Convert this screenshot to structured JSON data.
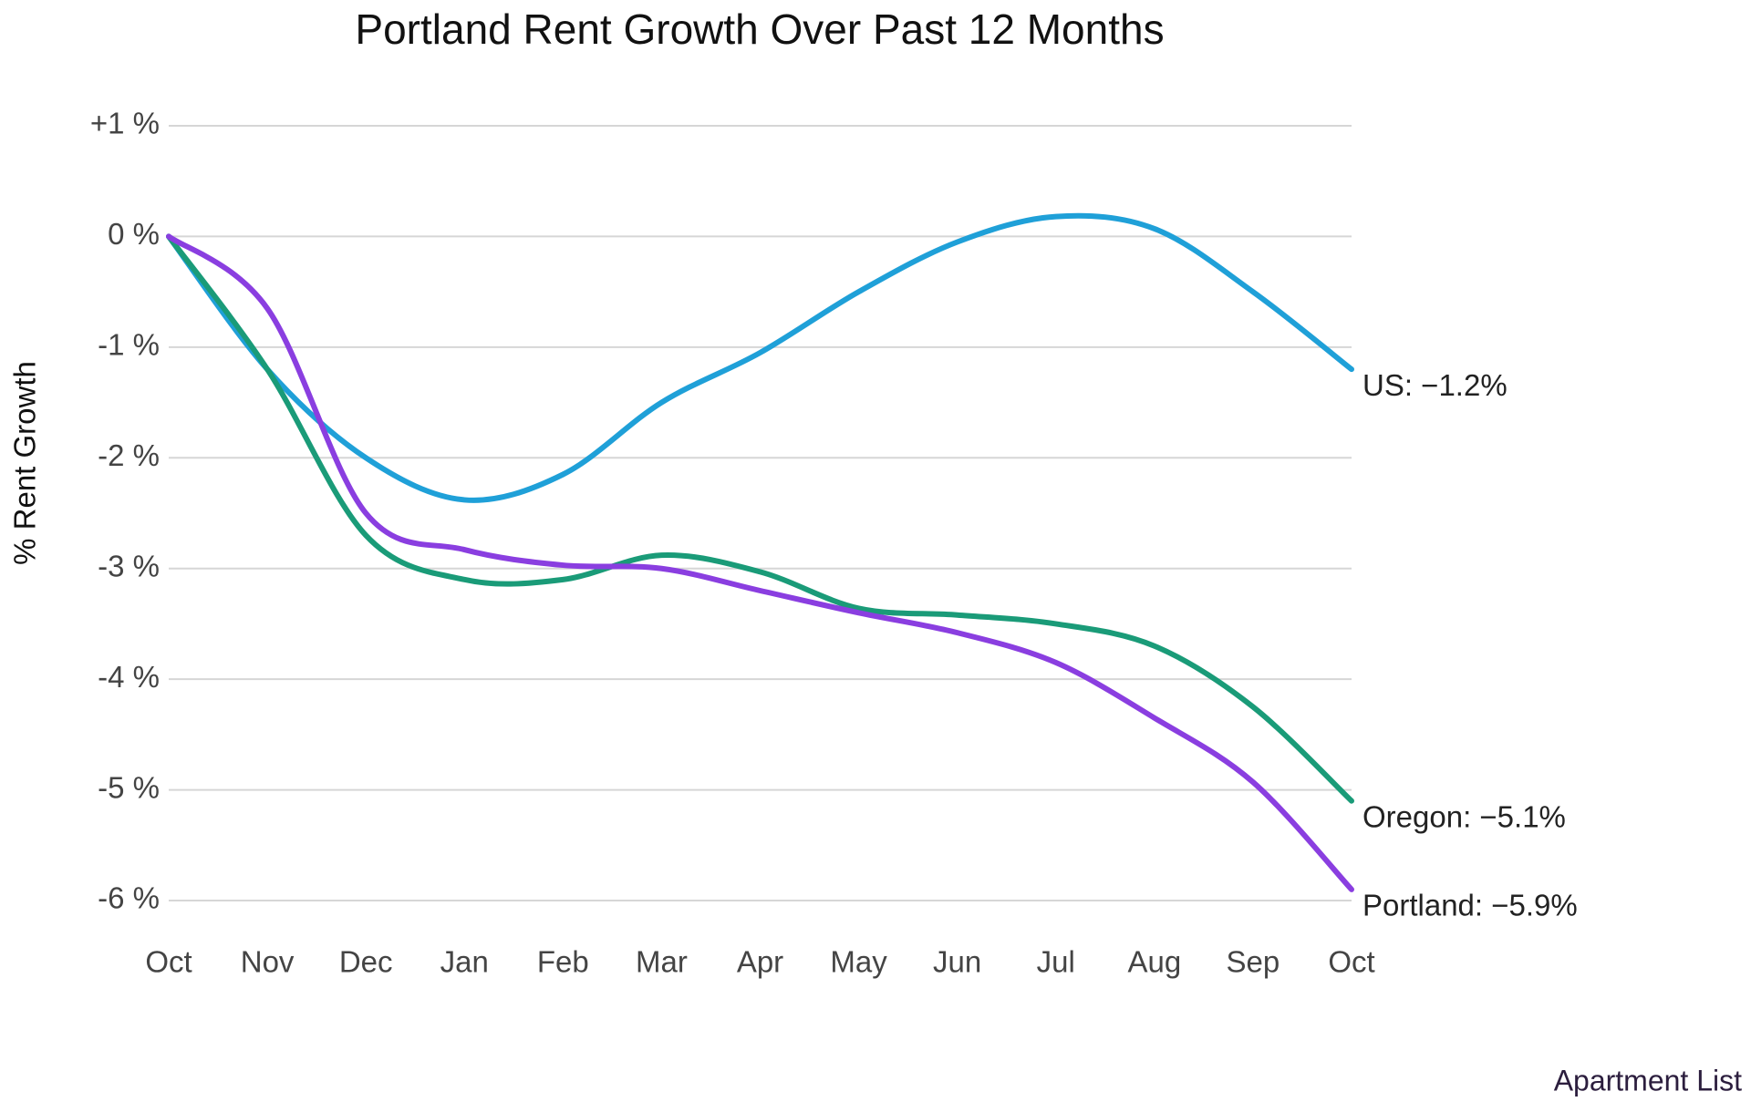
{
  "chart_data": {
    "type": "line",
    "title": "Portland Rent Growth Over Past 12 Months",
    "y_label": "% Rent Growth",
    "source": "Apartment List",
    "categories": [
      "Oct",
      "Nov",
      "Dec",
      "Jan",
      "Feb",
      "Mar",
      "Apr",
      "May",
      "Jun",
      "Jul",
      "Aug",
      "Sep",
      "Oct"
    ],
    "series": [
      {
        "name": "US",
        "color": "#1fa0d8",
        "values": [
          0,
          -1.2,
          -2.0,
          -2.38,
          -2.15,
          -1.5,
          -1.05,
          -0.5,
          -0.05,
          0.18,
          0.07,
          -0.5,
          -1.2
        ],
        "value_labels": [
          null,
          null,
          null,
          null,
          null,
          null,
          null,
          null,
          null,
          null,
          null,
          null,
          "US: −1.2%"
        ]
      },
      {
        "name": "Oregon",
        "color": "#1a9b78",
        "values": [
          0,
          -1.2,
          -2.7,
          -3.1,
          -3.1,
          -2.88,
          -3.03,
          -3.36,
          -3.42,
          -3.5,
          -3.7,
          -4.25,
          -5.1
        ],
        "value_labels": [
          null,
          null,
          null,
          null,
          null,
          null,
          null,
          null,
          null,
          null,
          null,
          null,
          "Oregon: −5.1%"
        ]
      },
      {
        "name": "Portland",
        "color": "#8a3ee0",
        "values": [
          0,
          -0.65,
          -2.5,
          -2.83,
          -2.97,
          -3.0,
          -3.2,
          -3.4,
          -3.58,
          -3.85,
          -4.35,
          -4.93,
          -5.9
        ],
        "value_labels": [
          null,
          null,
          null,
          null,
          null,
          null,
          null,
          null,
          null,
          null,
          null,
          null,
          "Portland: −5.9%"
        ]
      }
    ],
    "ylim": [
      -6,
      1
    ],
    "yticks": [
      {
        "value": 1,
        "label": "+1 %"
      },
      {
        "value": 0,
        "label": "0 %"
      },
      {
        "value": -1,
        "label": "-1 %"
      },
      {
        "value": -2,
        "label": "-2 %"
      },
      {
        "value": -3,
        "label": "-3 %"
      },
      {
        "value": -4,
        "label": "-4 %"
      },
      {
        "value": -5,
        "label": "-5 %"
      },
      {
        "value": -6,
        "label": "-6 %"
      }
    ],
    "grid": true
  }
}
